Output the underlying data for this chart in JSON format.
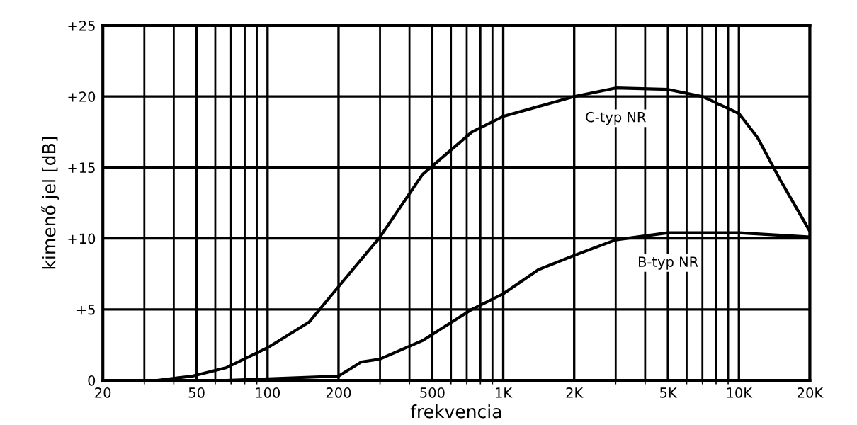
{
  "chart_data": {
    "type": "line",
    "xlabel": "frekvencia",
    "ylabel": "kimenő jel [dB]",
    "log": "x",
    "grid": true,
    "marker": "none",
    "line_style": "solid",
    "xlim": [
      20,
      20000
    ],
    "xticks": [
      20,
      50,
      100,
      200,
      500,
      {
        "value": 1000,
        "label": "1K"
      },
      {
        "value": 2000,
        "label": "2K"
      },
      {
        "value": 5000,
        "label": "5K"
      },
      {
        "value": 10000,
        "label": "10K"
      },
      {
        "value": 20000,
        "label": "20K"
      }
    ],
    "ylim": [
      0,
      25
    ],
    "yticks": [
      0,
      {
        "value": 5,
        "label": "+5"
      },
      {
        "value": 10,
        "label": "+10"
      },
      {
        "value": 15,
        "label": "+15"
      },
      {
        "value": 20,
        "label": "+20"
      },
      {
        "value": 25,
        "label": "+25"
      }
    ],
    "series": [
      {
        "name": "C-typ NR",
        "color": "#000000",
        "x": [
          34,
          48,
          67,
          100,
          150,
          200,
          300,
          454,
          736,
          1000,
          2000,
          3000,
          5000,
          7000,
          10000,
          12000,
          15000,
          20000
        ],
        "values": [
          0,
          0.3,
          0.9,
          2.3,
          4.1,
          6.6,
          10.1,
          14.5,
          17.5,
          18.6,
          20.0,
          20.6,
          20.5,
          20.0,
          18.8,
          17.1,
          14.1,
          10.5
        ]
      },
      {
        "name": "B-typ NR",
        "color": "#000000",
        "x": [
          67,
          200,
          250,
          300,
          454,
          736,
          1000,
          1410,
          2000,
          3000,
          5000,
          10000,
          20000
        ],
        "values": [
          0,
          0.3,
          1.3,
          1.5,
          2.8,
          5.0,
          6.1,
          7.8,
          8.8,
          9.9,
          10.4,
          10.4,
          10.1
        ]
      }
    ]
  }
}
